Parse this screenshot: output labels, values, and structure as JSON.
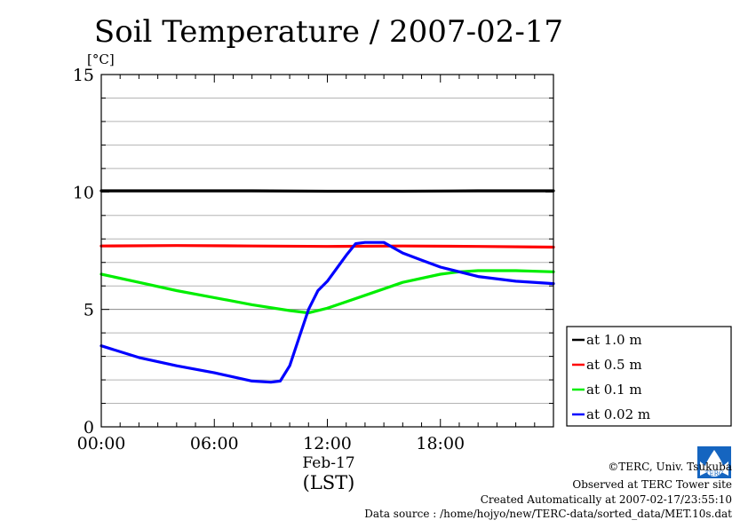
{
  "chart_data": {
    "type": "line",
    "title": "Soil Temperature / 2007-02-17",
    "ylabel": "[°C]",
    "xlabel_date": "Feb-17",
    "xlabel_tz": "(LST)",
    "xlim": [
      0,
      24
    ],
    "ylim": [
      0,
      15
    ],
    "x_ticks": [
      {
        "value": 0,
        "label": "00:00"
      },
      {
        "value": 6,
        "label": "06:00"
      },
      {
        "value": 12,
        "label": "12:00"
      },
      {
        "value": 18,
        "label": "18:00"
      }
    ],
    "y_ticks": [
      {
        "value": 0,
        "label": "0"
      },
      {
        "value": 5,
        "label": "5"
      },
      {
        "value": 10,
        "label": "10"
      },
      {
        "value": 15,
        "label": "15"
      }
    ],
    "grid": true,
    "legend_position": "right-bottom",
    "series": [
      {
        "name": "at 1.0 m",
        "color": "#000000",
        "x": [
          0,
          4,
          8,
          12,
          16,
          20,
          24
        ],
        "y": [
          10.05,
          10.05,
          10.05,
          10.03,
          10.03,
          10.05,
          10.05
        ]
      },
      {
        "name": "at 0.5 m",
        "color": "#ff0000",
        "x": [
          0,
          4,
          8,
          12,
          16,
          20,
          24
        ],
        "y": [
          7.7,
          7.72,
          7.7,
          7.68,
          7.7,
          7.68,
          7.65
        ]
      },
      {
        "name": "at 0.1 m",
        "color": "#00ee00",
        "x": [
          0,
          2,
          4,
          6,
          8,
          10,
          11,
          12,
          14,
          16,
          18,
          19,
          20,
          22,
          24
        ],
        "y": [
          6.5,
          6.15,
          5.8,
          5.5,
          5.2,
          4.95,
          4.85,
          5.05,
          5.6,
          6.15,
          6.5,
          6.6,
          6.65,
          6.65,
          6.6
        ]
      },
      {
        "name": "at 0.02 m",
        "color": "#0000ff",
        "x": [
          0,
          2,
          4,
          6,
          8,
          9,
          9.5,
          10,
          10.5,
          11,
          11.5,
          12,
          13,
          13.5,
          14,
          15,
          16,
          17,
          18,
          20,
          22,
          24
        ],
        "y": [
          3.45,
          2.95,
          2.6,
          2.3,
          1.95,
          1.9,
          1.95,
          2.6,
          3.8,
          5.0,
          5.8,
          6.2,
          7.3,
          7.8,
          7.85,
          7.85,
          7.4,
          7.1,
          6.8,
          6.4,
          6.2,
          6.1
        ]
      }
    ]
  },
  "credits": {
    "org": "©TERC, Univ. Tsukuba",
    "site": "Observed at TERC Tower site",
    "created": "Created Automatically at 2007-02-17/23:55:10",
    "source": "Data source : /home/hojyo/new/TERC-data/sorted_data/MET.10s.dat",
    "logo_text": "TERC"
  }
}
